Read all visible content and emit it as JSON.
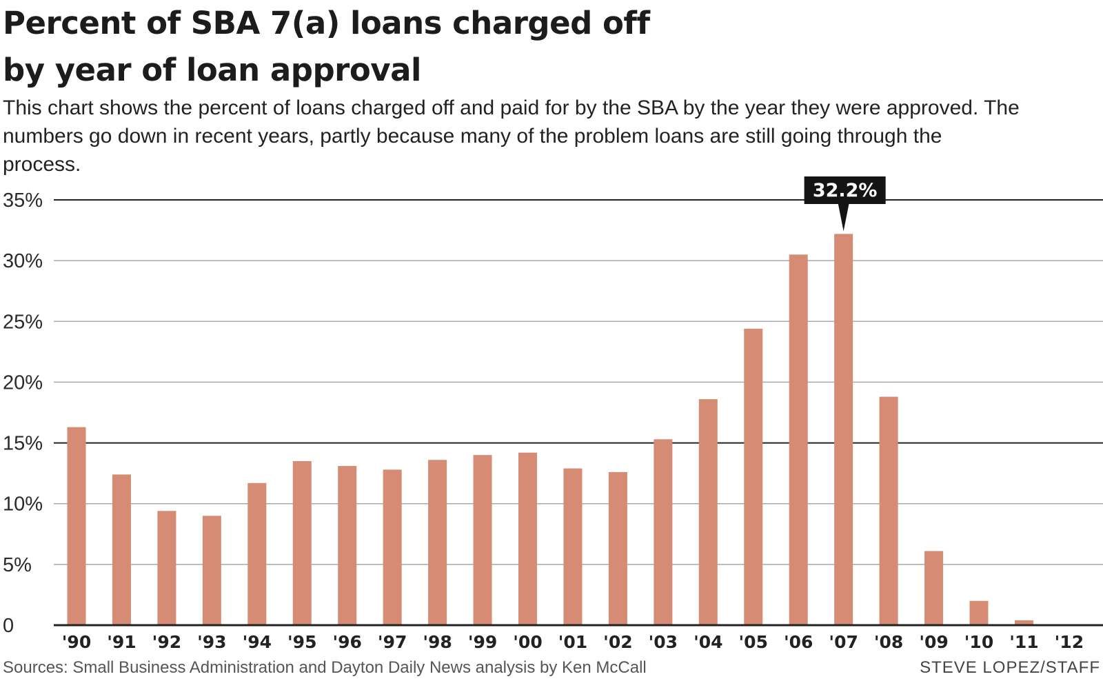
{
  "header": {
    "title_line1": "Percent of SBA 7(a) loans charged off",
    "title_line2": "by year of loan approval",
    "subtitle": "This chart shows the percent of loans charged off and paid for by the SBA by the year they were approved. The numbers go down in recent years, partly because many of the problem loans are still going through the process."
  },
  "footer": {
    "source": "Sources: Small Business Administration and Dayton Daily News analysis by Ken McCall",
    "credit": "STEVE LOPEZ/STAFF"
  },
  "colors": {
    "bar": "#d68b74",
    "callout": "#141414"
  },
  "chart_data": {
    "type": "bar",
    "title": "Percent of SBA 7(a) loans charged off by year of loan approval",
    "xlabel": "",
    "ylabel": "",
    "categories": [
      "'90",
      "'91",
      "'92",
      "'93",
      "'94",
      "'95",
      "'96",
      "'97",
      "'98",
      "'99",
      "'00",
      "'01",
      "'02",
      "'03",
      "'04",
      "'05",
      "'06",
      "'07",
      "'08",
      "'09",
      "'10",
      "'11",
      "'12"
    ],
    "values": [
      16.3,
      12.4,
      9.4,
      9.0,
      11.7,
      13.5,
      13.1,
      12.8,
      13.6,
      14.0,
      14.2,
      12.9,
      12.6,
      15.3,
      18.6,
      24.4,
      30.5,
      32.2,
      18.8,
      6.1,
      2.0,
      0.4,
      0
    ],
    "ylim": [
      0,
      35
    ],
    "yticks": [
      0,
      5,
      10,
      15,
      20,
      25,
      30,
      35
    ],
    "ytick_labels": [
      "0",
      "5%",
      "10%",
      "15%",
      "20%",
      "25%",
      "30%",
      "35%"
    ],
    "dark_gridlines": [
      15,
      35
    ],
    "grid": true,
    "annotations": [
      {
        "category": "'07",
        "text": "32.2%"
      }
    ]
  }
}
